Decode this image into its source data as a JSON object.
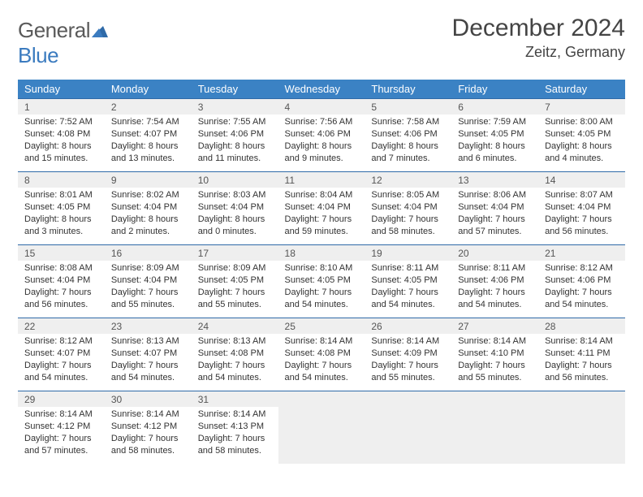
{
  "brand": {
    "part1": "General",
    "part2": "Blue"
  },
  "title": "December 2024",
  "location": "Zeitz, Germany",
  "colors": {
    "header_bg": "#3b82c4",
    "header_text": "#ffffff",
    "daynum_bg": "#efefef",
    "row_border": "#2f6aa8",
    "body_text": "#333333",
    "title_text": "#444444",
    "logo_gray": "#5a5a5a",
    "logo_blue": "#3b7bbf"
  },
  "weekdays": [
    "Sunday",
    "Monday",
    "Tuesday",
    "Wednesday",
    "Thursday",
    "Friday",
    "Saturday"
  ],
  "weeks": [
    [
      {
        "n": "1",
        "sr": "Sunrise: 7:52 AM",
        "ss": "Sunset: 4:08 PM",
        "d1": "Daylight: 8 hours",
        "d2": "and 15 minutes."
      },
      {
        "n": "2",
        "sr": "Sunrise: 7:54 AM",
        "ss": "Sunset: 4:07 PM",
        "d1": "Daylight: 8 hours",
        "d2": "and 13 minutes."
      },
      {
        "n": "3",
        "sr": "Sunrise: 7:55 AM",
        "ss": "Sunset: 4:06 PM",
        "d1": "Daylight: 8 hours",
        "d2": "and 11 minutes."
      },
      {
        "n": "4",
        "sr": "Sunrise: 7:56 AM",
        "ss": "Sunset: 4:06 PM",
        "d1": "Daylight: 8 hours",
        "d2": "and 9 minutes."
      },
      {
        "n": "5",
        "sr": "Sunrise: 7:58 AM",
        "ss": "Sunset: 4:06 PM",
        "d1": "Daylight: 8 hours",
        "d2": "and 7 minutes."
      },
      {
        "n": "6",
        "sr": "Sunrise: 7:59 AM",
        "ss": "Sunset: 4:05 PM",
        "d1": "Daylight: 8 hours",
        "d2": "and 6 minutes."
      },
      {
        "n": "7",
        "sr": "Sunrise: 8:00 AM",
        "ss": "Sunset: 4:05 PM",
        "d1": "Daylight: 8 hours",
        "d2": "and 4 minutes."
      }
    ],
    [
      {
        "n": "8",
        "sr": "Sunrise: 8:01 AM",
        "ss": "Sunset: 4:05 PM",
        "d1": "Daylight: 8 hours",
        "d2": "and 3 minutes."
      },
      {
        "n": "9",
        "sr": "Sunrise: 8:02 AM",
        "ss": "Sunset: 4:04 PM",
        "d1": "Daylight: 8 hours",
        "d2": "and 2 minutes."
      },
      {
        "n": "10",
        "sr": "Sunrise: 8:03 AM",
        "ss": "Sunset: 4:04 PM",
        "d1": "Daylight: 8 hours",
        "d2": "and 0 minutes."
      },
      {
        "n": "11",
        "sr": "Sunrise: 8:04 AM",
        "ss": "Sunset: 4:04 PM",
        "d1": "Daylight: 7 hours",
        "d2": "and 59 minutes."
      },
      {
        "n": "12",
        "sr": "Sunrise: 8:05 AM",
        "ss": "Sunset: 4:04 PM",
        "d1": "Daylight: 7 hours",
        "d2": "and 58 minutes."
      },
      {
        "n": "13",
        "sr": "Sunrise: 8:06 AM",
        "ss": "Sunset: 4:04 PM",
        "d1": "Daylight: 7 hours",
        "d2": "and 57 minutes."
      },
      {
        "n": "14",
        "sr": "Sunrise: 8:07 AM",
        "ss": "Sunset: 4:04 PM",
        "d1": "Daylight: 7 hours",
        "d2": "and 56 minutes."
      }
    ],
    [
      {
        "n": "15",
        "sr": "Sunrise: 8:08 AM",
        "ss": "Sunset: 4:04 PM",
        "d1": "Daylight: 7 hours",
        "d2": "and 56 minutes."
      },
      {
        "n": "16",
        "sr": "Sunrise: 8:09 AM",
        "ss": "Sunset: 4:04 PM",
        "d1": "Daylight: 7 hours",
        "d2": "and 55 minutes."
      },
      {
        "n": "17",
        "sr": "Sunrise: 8:09 AM",
        "ss": "Sunset: 4:05 PM",
        "d1": "Daylight: 7 hours",
        "d2": "and 55 minutes."
      },
      {
        "n": "18",
        "sr": "Sunrise: 8:10 AM",
        "ss": "Sunset: 4:05 PM",
        "d1": "Daylight: 7 hours",
        "d2": "and 54 minutes."
      },
      {
        "n": "19",
        "sr": "Sunrise: 8:11 AM",
        "ss": "Sunset: 4:05 PM",
        "d1": "Daylight: 7 hours",
        "d2": "and 54 minutes."
      },
      {
        "n": "20",
        "sr": "Sunrise: 8:11 AM",
        "ss": "Sunset: 4:06 PM",
        "d1": "Daylight: 7 hours",
        "d2": "and 54 minutes."
      },
      {
        "n": "21",
        "sr": "Sunrise: 8:12 AM",
        "ss": "Sunset: 4:06 PM",
        "d1": "Daylight: 7 hours",
        "d2": "and 54 minutes."
      }
    ],
    [
      {
        "n": "22",
        "sr": "Sunrise: 8:12 AM",
        "ss": "Sunset: 4:07 PM",
        "d1": "Daylight: 7 hours",
        "d2": "and 54 minutes."
      },
      {
        "n": "23",
        "sr": "Sunrise: 8:13 AM",
        "ss": "Sunset: 4:07 PM",
        "d1": "Daylight: 7 hours",
        "d2": "and 54 minutes."
      },
      {
        "n": "24",
        "sr": "Sunrise: 8:13 AM",
        "ss": "Sunset: 4:08 PM",
        "d1": "Daylight: 7 hours",
        "d2": "and 54 minutes."
      },
      {
        "n": "25",
        "sr": "Sunrise: 8:14 AM",
        "ss": "Sunset: 4:08 PM",
        "d1": "Daylight: 7 hours",
        "d2": "and 54 minutes."
      },
      {
        "n": "26",
        "sr": "Sunrise: 8:14 AM",
        "ss": "Sunset: 4:09 PM",
        "d1": "Daylight: 7 hours",
        "d2": "and 55 minutes."
      },
      {
        "n": "27",
        "sr": "Sunrise: 8:14 AM",
        "ss": "Sunset: 4:10 PM",
        "d1": "Daylight: 7 hours",
        "d2": "and 55 minutes."
      },
      {
        "n": "28",
        "sr": "Sunrise: 8:14 AM",
        "ss": "Sunset: 4:11 PM",
        "d1": "Daylight: 7 hours",
        "d2": "and 56 minutes."
      }
    ],
    [
      {
        "n": "29",
        "sr": "Sunrise: 8:14 AM",
        "ss": "Sunset: 4:12 PM",
        "d1": "Daylight: 7 hours",
        "d2": "and 57 minutes."
      },
      {
        "n": "30",
        "sr": "Sunrise: 8:14 AM",
        "ss": "Sunset: 4:12 PM",
        "d1": "Daylight: 7 hours",
        "d2": "and 58 minutes."
      },
      {
        "n": "31",
        "sr": "Sunrise: 8:14 AM",
        "ss": "Sunset: 4:13 PM",
        "d1": "Daylight: 7 hours",
        "d2": "and 58 minutes."
      },
      null,
      null,
      null,
      null
    ]
  ]
}
